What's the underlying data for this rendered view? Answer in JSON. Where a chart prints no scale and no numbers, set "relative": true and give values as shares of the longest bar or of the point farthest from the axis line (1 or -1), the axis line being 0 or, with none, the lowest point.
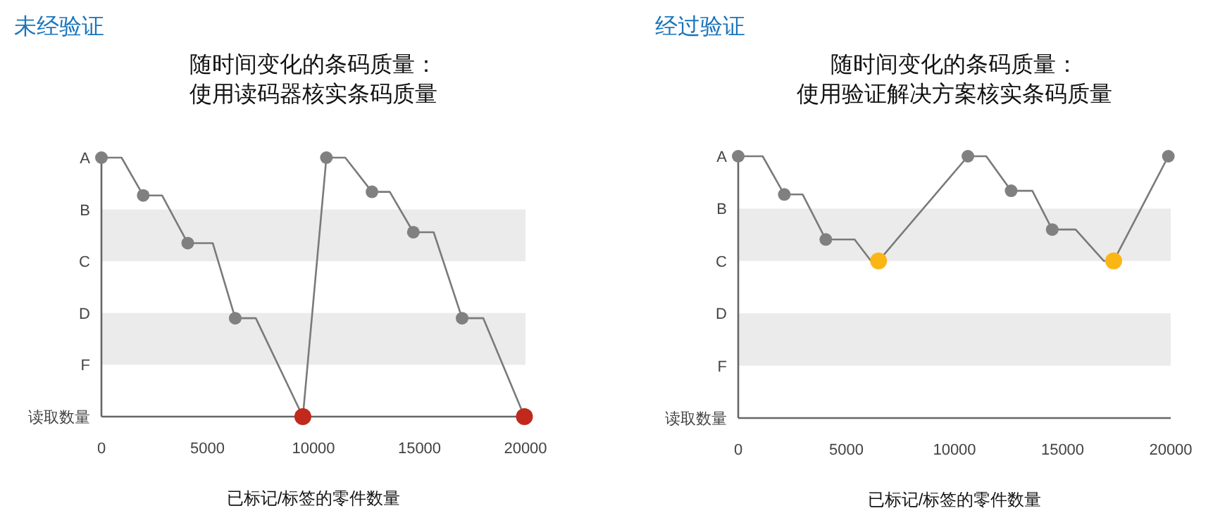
{
  "chart_data": [
    {
      "type": "line",
      "title": "未经验证",
      "subtitle": "随时间变化的条码质量：使用读码器核实条码质量",
      "xlabel": "已标记/标签的零件数量",
      "xlim": [
        0,
        20000
      ],
      "xticks": [
        0,
        5000,
        10000,
        15000,
        20000
      ],
      "relative": true,
      "y_categories": [
        "A",
        "B",
        "C",
        "D",
        "F",
        "读取数量"
      ],
      "bands": [
        {
          "axis": "y",
          "from": 0.6,
          "to": 0.8,
          "color": "#ebebeb"
        },
        {
          "axis": "y",
          "from": 0.2,
          "to": 0.4,
          "color": "#ebebeb"
        }
      ],
      "series": [
        {
          "type": "line",
          "color": "#7a7a7a",
          "x": [
            0,
            950,
            1970,
            2860,
            4070,
            5250,
            6310,
            7280,
            9500,
            10610,
            11500,
            12760,
            13600,
            14710,
            15670,
            17010,
            18010,
            19950
          ],
          "values": [
            1,
            1,
            0.854,
            0.854,
            0.67,
            0.67,
            0.38,
            0.38,
            0,
            1,
            1,
            0.868,
            0.868,
            0.712,
            0.712,
            0.38,
            0.38,
            0
          ]
        },
        {
          "type": "scatter",
          "color": "#808080",
          "x": [
            0,
            1970,
            4070,
            6310,
            10610,
            12760,
            14710,
            17010
          ],
          "values": [
            1,
            0.854,
            0.67,
            0.38,
            1,
            0.868,
            0.712,
            0.38
          ]
        },
        {
          "type": "scatter",
          "color": "#c0291b",
          "x": [
            9500,
            19950
          ],
          "values": [
            0,
            0
          ]
        }
      ]
    },
    {
      "type": "line",
      "title": "经过验证",
      "subtitle": "随时间变化的条码质量：使用验证解决方案核实条码质量",
      "xlabel": "已标记/标签的零件数量",
      "xlim": [
        0,
        20000
      ],
      "xticks": [
        0,
        5000,
        10000,
        15000,
        20000
      ],
      "relative": true,
      "y_categories": [
        "A",
        "B",
        "C",
        "D",
        "F",
        "读取数量"
      ],
      "bands": [
        {
          "axis": "y",
          "from": 0.6,
          "to": 0.8,
          "color": "#ebebeb"
        },
        {
          "axis": "y",
          "from": 0.2,
          "to": 0.4,
          "color": "#ebebeb"
        }
      ],
      "series": [
        {
          "type": "line",
          "color": "#7a7a7a",
          "x": [
            0,
            1130,
            2130,
            2980,
            4050,
            5380,
            6140,
            6490,
            10620,
            11470,
            12620,
            13600,
            14520,
            15600,
            16910,
            17360,
            19890
          ],
          "values": [
            1,
            1,
            0.854,
            0.854,
            0.682,
            0.682,
            0.6,
            0.6,
            1,
            1,
            0.868,
            0.868,
            0.72,
            0.72,
            0.6,
            0.6,
            1
          ]
        },
        {
          "type": "scatter",
          "color": "#808080",
          "x": [
            0,
            2130,
            4050,
            10620,
            12620,
            14520,
            19890
          ],
          "values": [
            1,
            0.854,
            0.682,
            1,
            0.868,
            0.72,
            1
          ]
        },
        {
          "type": "scatter",
          "color": "#fbb615",
          "x": [
            6490,
            17360
          ],
          "values": [
            0.6,
            0.6
          ]
        }
      ]
    }
  ]
}
